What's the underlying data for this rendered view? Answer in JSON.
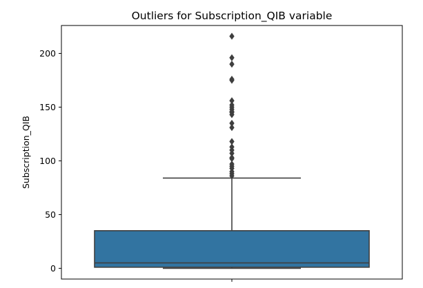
{
  "chart_data": {
    "type": "box",
    "title": "Outliers for Subscription_QIB variable",
    "xlabel": "",
    "ylabel": "Subscription_QIB",
    "ylim": [
      -10,
      226
    ],
    "yticks": [
      0,
      50,
      100,
      150,
      200
    ],
    "box": {
      "min": 0,
      "q1": 1,
      "median": 5,
      "q3": 35,
      "whisker_high": 84,
      "fill": "#3274a1",
      "line": "#3f3f3f"
    },
    "outliers": [
      86,
      88,
      90,
      93,
      95,
      97,
      102,
      103,
      107,
      110,
      113,
      118,
      131,
      135,
      143,
      145,
      146,
      148,
      150,
      152,
      156,
      175,
      176,
      190,
      196,
      216
    ],
    "grid": false,
    "legend": false
  }
}
